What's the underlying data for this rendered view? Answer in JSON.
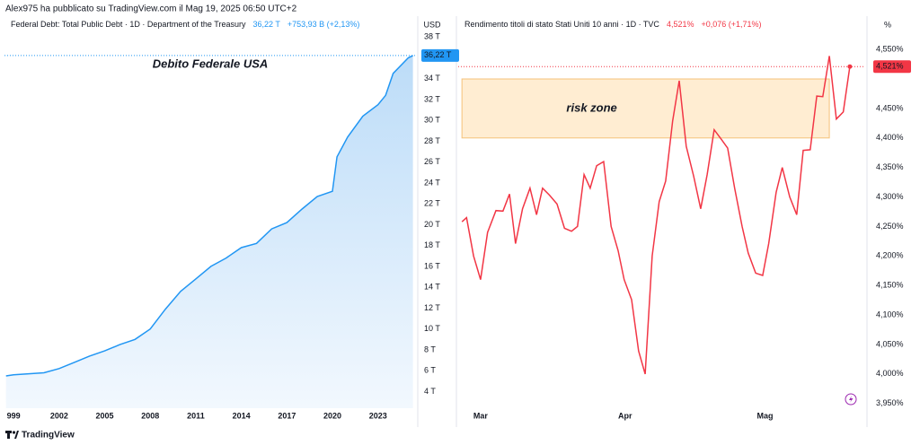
{
  "header": "Alex975 ha pubblicato su TradingView.com il Mag 19, 2025 06:50 UTC+2",
  "footer": "TradingView",
  "chart_data": [
    {
      "type": "area",
      "legend": {
        "title": "Federal Debt: Total Public Debt · 1D · Department of the Treasury",
        "value": "36,22 T",
        "change": "+753,93 B (+2,13%)"
      },
      "axis_label": "USD",
      "annotation": {
        "text": "Debito Federale USA"
      },
      "price_tag": "36,22 T",
      "color": "#2196f3",
      "x": [
        1998.5,
        1999,
        2000,
        2001,
        2002,
        2003,
        2004,
        2005,
        2006,
        2007,
        2008,
        2009,
        2010,
        2011,
        2012,
        2013,
        2014,
        2015,
        2016,
        2017,
        2018,
        2019,
        2020,
        2020.3,
        2021,
        2022,
        2023,
        2023.5,
        2024,
        2025,
        2025.3
      ],
      "values": [
        5.5,
        5.6,
        5.7,
        5.8,
        6.2,
        6.8,
        7.4,
        7.9,
        8.5,
        9.0,
        10.0,
        11.9,
        13.6,
        14.8,
        16.0,
        16.8,
        17.8,
        18.2,
        19.6,
        20.2,
        21.5,
        22.7,
        23.2,
        26.5,
        28.4,
        30.4,
        31.5,
        32.4,
        34.5,
        36.0,
        36.22
      ],
      "xlim": [
        1998.4,
        2025.5
      ],
      "xticks": [
        {
          "value": 1999,
          "label": "999"
        },
        2002,
        2005,
        2008,
        2011,
        2014,
        2017,
        2020,
        2023
      ],
      "ylim": [
        2.4,
        38.1
      ],
      "yticks": [
        {
          "value": 4,
          "label": "4 T"
        },
        {
          "value": 6,
          "label": "6 T"
        },
        {
          "value": 8,
          "label": "8 T"
        },
        {
          "value": 10,
          "label": "10 T"
        },
        {
          "value": 12,
          "label": "12 T"
        },
        {
          "value": 14,
          "label": "14 T"
        },
        {
          "value": 16,
          "label": "16 T"
        },
        {
          "value": 18,
          "label": "18 T"
        },
        {
          "value": 20,
          "label": "20 T"
        },
        {
          "value": 22,
          "label": "22 T"
        },
        {
          "value": 24,
          "label": "24 T"
        },
        {
          "value": 26,
          "label": "26 T"
        },
        {
          "value": 28,
          "label": "28 T"
        },
        {
          "value": 30,
          "label": "30 T"
        },
        {
          "value": 32,
          "label": "32 T"
        },
        {
          "value": 34,
          "label": "34 T"
        },
        {
          "value": 38,
          "label": "38 T"
        }
      ]
    },
    {
      "type": "line",
      "legend": {
        "title": "Rendimento titoli di stato Stati Uniti 10 anni · 1D · TVC",
        "value": "4,521%",
        "change": "+0,076 (+1,71%)"
      },
      "axis_label": "%",
      "annotation": {
        "text": "risk zone",
        "x": [
          56,
          134.8
        ],
        "y": [
          4.4,
          4.5
        ]
      },
      "price_tag": "4,521%",
      "color": "#f23645",
      "x": [
        56,
        57,
        58.5,
        60,
        61.5,
        63.3,
        64.8,
        66.2,
        67.5,
        69,
        70.6,
        72,
        73.3,
        74.8,
        76.4,
        78,
        79.5,
        80.8,
        82.2,
        83.5,
        84.9,
        86.4,
        88,
        89.5,
        90.8,
        92.4,
        93.9,
        95.3,
        96.8,
        98.3,
        99.7,
        101.2,
        102.6,
        104.1,
        105.7,
        107.2,
        108.6,
        110.1,
        111.6,
        113,
        114.5,
        116.1,
        117.4,
        119,
        120.5,
        121.8,
        123.4,
        124.7,
        126.3,
        127.8,
        129.2,
        130.7,
        132.1,
        133.4,
        134.8,
        136.3,
        137.8,
        139.2
      ],
      "values": [
        4.258,
        4.265,
        4.2,
        4.16,
        4.24,
        4.277,
        4.276,
        4.305,
        4.221,
        4.28,
        4.315,
        4.27,
        4.315,
        4.303,
        4.288,
        4.247,
        4.242,
        4.25,
        4.338,
        4.315,
        4.353,
        4.36,
        4.25,
        4.209,
        4.16,
        4.126,
        4.039,
        4.0,
        4.2,
        4.292,
        4.327,
        4.429,
        4.497,
        4.386,
        4.335,
        4.28,
        4.338,
        4.414,
        4.398,
        4.383,
        4.315,
        4.25,
        4.205,
        4.171,
        4.167,
        4.221,
        4.308,
        4.35,
        4.3,
        4.27,
        4.379,
        4.38,
        4.471,
        4.47,
        4.539,
        4.432,
        4.444,
        4.521
      ],
      "xlim": [
        55.2,
        142.3
      ],
      "xticks": [
        {
          "value": 60,
          "label": "Mar"
        },
        {
          "value": 91,
          "label": "Apr"
        },
        {
          "value": 121,
          "label": "Mag"
        }
      ],
      "ylim": [
        3.942,
        4.573
      ],
      "yticks": [
        {
          "value": 3.95,
          "label": "3,950%"
        },
        {
          "value": 4.0,
          "label": "4,000%"
        },
        {
          "value": 4.05,
          "label": "4,050%"
        },
        {
          "value": 4.1,
          "label": "4,100%"
        },
        {
          "value": 4.15,
          "label": "4,150%"
        },
        {
          "value": 4.2,
          "label": "4,200%"
        },
        {
          "value": 4.25,
          "label": "4,250%"
        },
        {
          "value": 4.3,
          "label": "4,300%"
        },
        {
          "value": 4.35,
          "label": "4,350%"
        },
        {
          "value": 4.4,
          "label": "4,400%"
        },
        {
          "value": 4.45,
          "label": "4,450%"
        },
        {
          "value": 4.55,
          "label": "4,550%"
        }
      ]
    }
  ]
}
